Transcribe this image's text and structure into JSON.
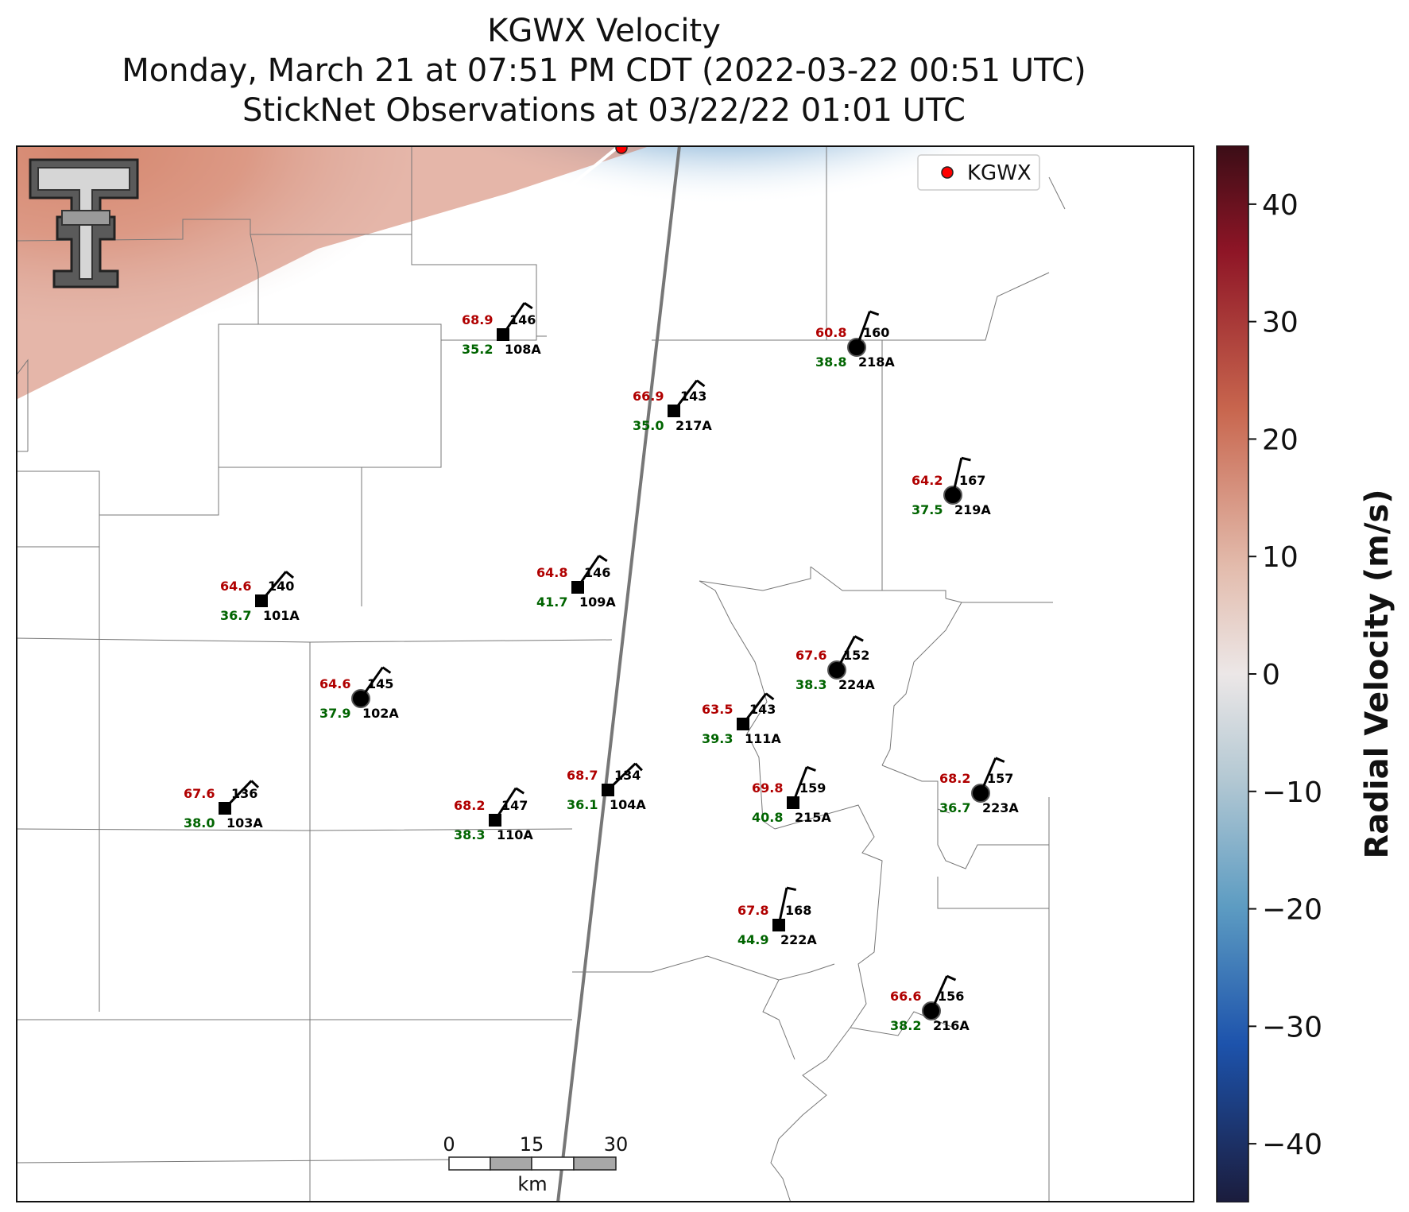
{
  "title_lines": [
    "KGWX Velocity",
    "Monday, March 21 at 07:51 PM CDT (2022-03-22 00:51 UTC)",
    "StickNet Observations at 03/22/22 01:01 UTC"
  ],
  "radar": {
    "id": "KGWX",
    "legend_label": "KGWX"
  },
  "colorbar": {
    "label": "Radial Velocity (m/s)",
    "vmin": -45,
    "vmax": 45,
    "ticks": [
      40,
      30,
      20,
      10,
      0,
      -10,
      -20,
      -30,
      -40
    ],
    "tick_labels": [
      "40",
      "30",
      "20",
      "10",
      "0",
      "−10",
      "−20",
      "−30",
      "−40"
    ]
  },
  "scale_bar": {
    "labels": [
      "0",
      "15",
      "30"
    ],
    "unit": "km"
  },
  "stations": [
    {
      "id": "108A",
      "temp": "68.9",
      "dir": "146",
      "dew": "35.2",
      "marker": "square"
    },
    {
      "id": "218A",
      "temp": "60.8",
      "dir": "160",
      "dew": "38.8",
      "marker": "circle"
    },
    {
      "id": "217A",
      "temp": "66.9",
      "dir": "143",
      "dew": "35.0",
      "marker": "square"
    },
    {
      "id": "219A",
      "temp": "64.2",
      "dir": "167",
      "dew": "37.5",
      "marker": "circle"
    },
    {
      "id": "101A",
      "temp": "64.6",
      "dir": "140",
      "dew": "36.7",
      "marker": "square"
    },
    {
      "id": "109A",
      "temp": "64.8",
      "dir": "146",
      "dew": "41.7",
      "marker": "square"
    },
    {
      "id": "224A",
      "temp": "67.6",
      "dir": "152",
      "dew": "38.3",
      "marker": "circle"
    },
    {
      "id": "102A",
      "temp": "64.6",
      "dir": "145",
      "dew": "37.9",
      "marker": "circle"
    },
    {
      "id": "111A",
      "temp": "63.5",
      "dir": "143",
      "dew": "39.3",
      "marker": "square"
    },
    {
      "id": "103A",
      "temp": "67.6",
      "dir": "136",
      "dew": "38.0",
      "marker": "square"
    },
    {
      "id": "110A",
      "temp": "68.2",
      "dir": "147",
      "dew": "38.3",
      "marker": "square"
    },
    {
      "id": "104A",
      "temp": "68.7",
      "dir": "134",
      "dew": "36.1",
      "marker": "square"
    },
    {
      "id": "215A",
      "temp": "69.8",
      "dir": "159",
      "dew": "40.8",
      "marker": "square"
    },
    {
      "id": "223A",
      "temp": "68.2",
      "dir": "157",
      "dew": "36.7",
      "marker": "circle"
    },
    {
      "id": "222A",
      "temp": "67.8",
      "dir": "168",
      "dew": "44.9",
      "marker": "square"
    },
    {
      "id": "216A",
      "temp": "66.6",
      "dir": "156",
      "dew": "38.2",
      "marker": "circle"
    }
  ],
  "colors": {
    "temp": "#b00000",
    "dew": "#006400",
    "radar_dot": "#ff0000"
  }
}
